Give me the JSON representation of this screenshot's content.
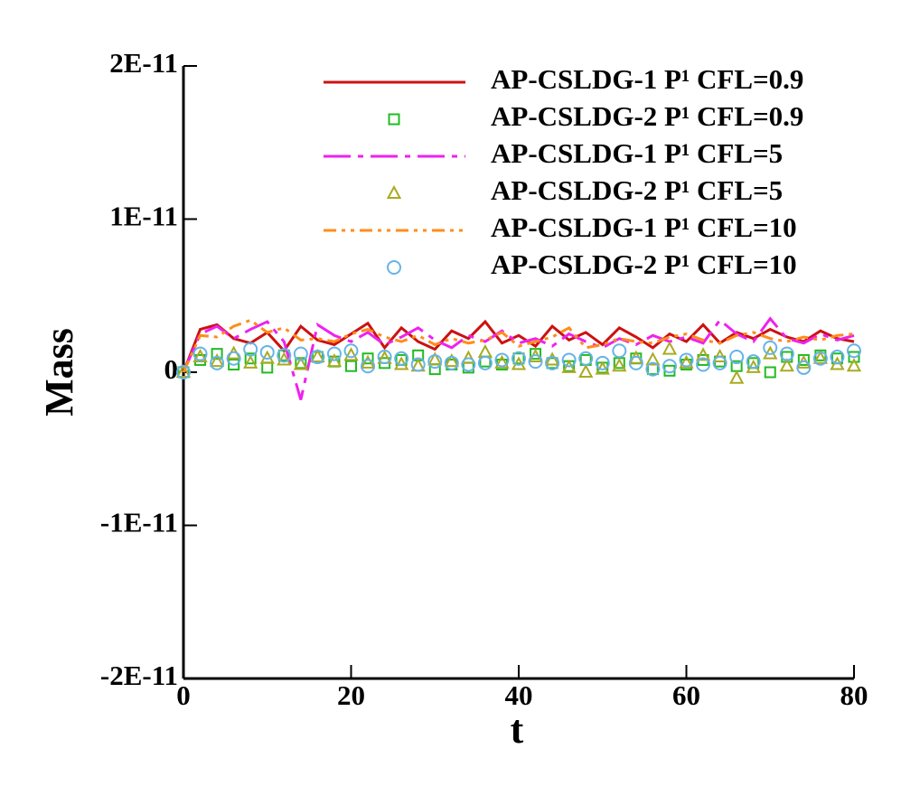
{
  "chart_data": {
    "type": "line",
    "x_label": "t",
    "y_label": "Mass",
    "xlim": [
      0,
      80
    ],
    "xticks": [
      0,
      20,
      40,
      60,
      80
    ],
    "ylim": [
      -2e-11,
      2e-11
    ],
    "yticks": [
      {
        "value": -2e-11,
        "label": "-2E-11"
      },
      {
        "value": -1e-11,
        "label": "-1E-11"
      },
      0,
      {
        "value": 1e-11,
        "label": "1E-11"
      },
      {
        "value": 2e-11,
        "label": "2E-11"
      }
    ],
    "legend": "upper right",
    "x": [
      0,
      2,
      4,
      6,
      8,
      10,
      12,
      14,
      16,
      18,
      20,
      22,
      24,
      26,
      28,
      30,
      32,
      34,
      36,
      38,
      40,
      42,
      44,
      46,
      48,
      50,
      52,
      54,
      56,
      58,
      60,
      62,
      64,
      66,
      68,
      70,
      72,
      74,
      76,
      78,
      80
    ],
    "series": [
      {
        "name": "AP-CSLDG-1 P¹ CFL=0.9",
        "color": "#cc1111",
        "line": "solid",
        "values": [
          0,
          2.8e-12,
          3.1e-12,
          2.2e-12,
          1.9e-12,
          2.6e-12,
          1.4e-12,
          3e-12,
          2.1e-12,
          1.8e-12,
          2.5e-12,
          3.2e-12,
          1.6e-12,
          2.9e-12,
          2e-12,
          1.5e-12,
          2.7e-12,
          2.2e-12,
          3.3e-12,
          1.9e-12,
          2.4e-12,
          1.7e-12,
          3e-12,
          2.1e-12,
          2.6e-12,
          1.8e-12,
          2.9e-12,
          2.3e-12,
          1.6e-12,
          2.5e-12,
          2e-12,
          3.1e-12,
          1.9e-12,
          2.6e-12,
          2.2e-12,
          2.8e-12,
          2.3e-12,
          2e-12,
          2.7e-12,
          2.2e-12,
          2e-12
        ]
      },
      {
        "name": "AP-CSLDG-2 P¹ CFL=0.9",
        "color": "#22bb22",
        "marker": "square",
        "values": [
          0,
          8e-13,
          1.2e-12,
          5e-13,
          9e-13,
          3e-13,
          1.1e-12,
          6e-13,
          1e-12,
          7e-13,
          4e-13,
          9e-13,
          6e-13,
          8e-13,
          1.1e-12,
          2e-13,
          5e-13,
          3e-13,
          7e-13,
          5e-13,
          9e-13,
          1.2e-12,
          6e-13,
          4e-13,
          8e-13,
          3e-13,
          6e-13,
          9e-13,
          2e-13,
          1e-13,
          5e-13,
          8e-13,
          7e-13,
          4e-13,
          6e-13,
          0,
          1e-12,
          8e-13,
          1.1e-12,
          9e-13,
          1e-12
        ]
      },
      {
        "name": "AP-CSLDG-1 P¹ CFL=5",
        "color": "#ee22ee",
        "line": "dashdot",
        "values": [
          0,
          2.5e-12,
          3e-12,
          2.2e-12,
          2.8e-12,
          3.3e-12,
          2e-12,
          -1.8e-12,
          3.1e-12,
          2.4e-12,
          2e-12,
          2.6e-12,
          1.8e-12,
          2.3e-12,
          2.9e-12,
          2.1e-12,
          1.6e-12,
          2.4e-12,
          2e-12,
          2.7e-12,
          1.9e-12,
          2.2e-12,
          1.7e-12,
          2.5e-12,
          2e-12,
          1.6e-12,
          2.2e-12,
          1.8e-12,
          2.4e-12,
          2e-12,
          2.3e-12,
          1.9e-12,
          3.4e-12,
          2.5e-12,
          2e-12,
          3.5e-12,
          2.2e-12,
          1.9e-12,
          2.5e-12,
          2.1e-12,
          2.4e-12
        ]
      },
      {
        "name": "AP-CSLDG-2 P¹ CFL=5",
        "color": "#aaaa22",
        "marker": "triangle",
        "values": [
          0,
          1e-12,
          7e-13,
          1.2e-12,
          6e-13,
          9e-13,
          8e-13,
          5e-13,
          1e-12,
          7e-13,
          1.1e-12,
          6e-13,
          9e-13,
          5e-13,
          4e-13,
          8e-13,
          7e-13,
          9e-13,
          1.3e-12,
          6e-13,
          5e-13,
          1e-12,
          8e-13,
          3e-13,
          0,
          2e-13,
          4e-13,
          9e-13,
          8e-13,
          1.5e-12,
          6e-13,
          1.1e-12,
          1e-12,
          -4e-13,
          3e-13,
          1.2e-12,
          4e-13,
          6e-13,
          9e-13,
          5e-13,
          4e-13
        ]
      },
      {
        "name": "AP-CSLDG-1 P¹ CFL=10",
        "color": "#ff8c1a",
        "line": "dashdotdot",
        "values": [
          0,
          2.4e-12,
          2.3e-12,
          3e-12,
          3.4e-12,
          2.6e-12,
          2.9e-12,
          2.1e-12,
          2.2e-12,
          2e-12,
          2.5e-12,
          2.8e-12,
          2.3e-12,
          2e-12,
          2.4e-12,
          1.8e-12,
          2.2e-12,
          1.9e-12,
          2.1e-12,
          2.6e-12,
          1.7e-12,
          2e-12,
          2.3e-12,
          2.9e-12,
          1.6e-12,
          1.8e-12,
          2.2e-12,
          2e-12,
          1.9e-12,
          2.3e-12,
          2.5e-12,
          2.1e-12,
          1.9e-12,
          2.4e-12,
          2.6e-12,
          2.2e-12,
          2e-12,
          2.3e-12,
          2.1e-12,
          2.4e-12,
          2.5e-12
        ]
      },
      {
        "name": "AP-CSLDG-2 P¹ CFL=10",
        "color": "#66b3e8",
        "marker": "circle",
        "values": [
          0,
          1.2e-12,
          6e-13,
          9e-13,
          1.5e-12,
          1.3e-12,
          1.1e-12,
          1.2e-12,
          1e-12,
          1.2e-12,
          1.4e-12,
          4e-13,
          1e-12,
          9e-13,
          5e-13,
          7e-13,
          6e-13,
          5e-13,
          6e-13,
          8e-13,
          9e-13,
          7e-13,
          6e-13,
          8e-13,
          9e-13,
          6e-13,
          1.4e-12,
          6e-13,
          2e-13,
          4e-13,
          8e-13,
          5e-13,
          6e-13,
          1e-12,
          7e-13,
          1.6e-12,
          1.2e-12,
          3e-13,
          9e-13,
          1e-12,
          1.4e-12
        ]
      }
    ]
  }
}
